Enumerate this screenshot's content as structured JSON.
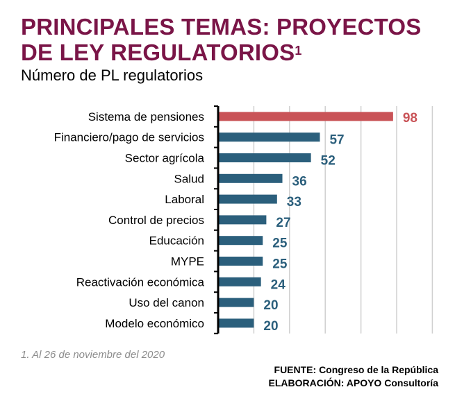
{
  "header": {
    "title_line1": "PRINCIPALES TEMAS: PROYECTOS",
    "title_line2": "DE LEY REGULATORIOS",
    "title_superscript": "1",
    "subtitle": "Número de PL regulatorios"
  },
  "chart_data": {
    "type": "bar",
    "orientation": "horizontal",
    "categories": [
      "Sistema de pensiones",
      "Financiero/pago de servicios",
      "Sector agrícola",
      "Salud",
      "Laboral",
      "Control de precios",
      "Educación",
      "MYPE",
      "Reactivación económica",
      "Uso del canon",
      "Modelo económico"
    ],
    "values": [
      98,
      57,
      52,
      36,
      33,
      27,
      25,
      25,
      24,
      20,
      20
    ],
    "highlight_index": 0,
    "xlim": [
      0,
      120
    ],
    "grid": "vertical",
    "colors": {
      "bar": "#2b5f7c",
      "highlight": "#c95357",
      "label": "#2b5f7c",
      "highlight_label": "#c95357",
      "grid": "#d0d0d0",
      "axis": "#000000"
    }
  },
  "footer": {
    "footnote": "1. Al  26 de noviembre del 2020",
    "source_line1": "FUENTE: Congreso de la República",
    "source_line2": "ELABORACIÓN: APOYO Consultoría"
  }
}
